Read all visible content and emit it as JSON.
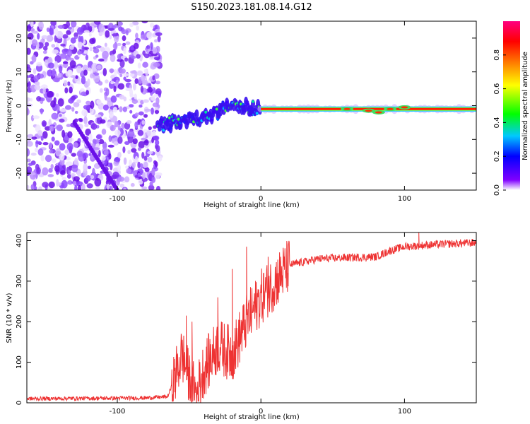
{
  "title": "S150.2023.181.08.14.G12",
  "chart_data": [
    {
      "type": "heatmap",
      "name": "spectrogram",
      "xlabel": "Height of straight line (km)",
      "ylabel": "Frequency (Hz)",
      "xlim": [
        -163,
        150
      ],
      "ylim": [
        -25,
        25
      ],
      "xticks": [
        -100,
        0,
        100
      ],
      "yticks": [
        -20,
        -10,
        0,
        10,
        20
      ],
      "xtick_labels": [
        "-100",
        "0",
        "100"
      ],
      "ytick_labels": [
        "-20",
        "-10",
        "0",
        "10",
        "20"
      ],
      "colorbar": {
        "label": "Normalized spectral amplitude",
        "range": [
          0,
          1
        ],
        "ticks": [
          0.0,
          0.2,
          0.4,
          0.6,
          0.8
        ],
        "tick_labels": [
          "0.0",
          "0.2",
          "0.4",
          "0.6",
          "0.8"
        ],
        "colormap": "rainbow",
        "colors": [
          "#ffffff",
          "#8000ff",
          "#0000ff",
          "#00c8ff",
          "#00ff00",
          "#ffff00",
          "#ff8000",
          "#ff0000",
          "#ff0080"
        ]
      },
      "description_features": {
        "noise_region_x": [
          -163,
          -72
        ],
        "signal_line_frequency": -1,
        "ramp": [
          [
            -72,
            -6
          ],
          [
            -35,
            -3
          ],
          [
            -22,
            0
          ],
          [
            -10,
            0
          ],
          [
            0,
            -1
          ],
          [
            150,
            -1
          ]
        ],
        "diagonal_streak": [
          [
            -130,
            -5
          ],
          [
            -100,
            -25
          ]
        ]
      },
      "grid": false
    },
    {
      "type": "line",
      "name": "snr",
      "xlabel": "Height of straight line (km)",
      "ylabel": "SNR (10 * v/v)",
      "xlim": [
        -163,
        150
      ],
      "ylim": [
        0,
        420
      ],
      "xticks": [
        -100,
        0,
        100
      ],
      "yticks": [
        0,
        100,
        200,
        300,
        400
      ],
      "xtick_labels": [
        "-100",
        "0",
        "100"
      ],
      "ytick_labels": [
        "0",
        "100",
        "200",
        "300",
        "400"
      ],
      "color": "#ee3333",
      "trend": [
        [
          -163,
          10
        ],
        [
          -80,
          12
        ],
        [
          -65,
          15
        ],
        [
          -60,
          60
        ],
        [
          -55,
          120
        ],
        [
          -50,
          60
        ],
        [
          -45,
          20
        ],
        [
          -40,
          80
        ],
        [
          -30,
          140
        ],
        [
          -20,
          120
        ],
        [
          -10,
          200
        ],
        [
          0,
          260
        ],
        [
          10,
          300
        ],
        [
          20,
          340
        ],
        [
          40,
          355
        ],
        [
          60,
          358
        ],
        [
          80,
          360
        ],
        [
          90,
          375
        ],
        [
          100,
          385
        ],
        [
          120,
          390
        ],
        [
          150,
          395
        ]
      ],
      "spikes": [
        [
          -52,
          215
        ],
        [
          -48,
          200
        ],
        [
          -30,
          260
        ],
        [
          -20,
          330
        ],
        [
          -10,
          385
        ],
        [
          -5,
          250
        ],
        [
          5,
          360
        ],
        [
          110,
          420
        ]
      ],
      "grid": false
    }
  ]
}
